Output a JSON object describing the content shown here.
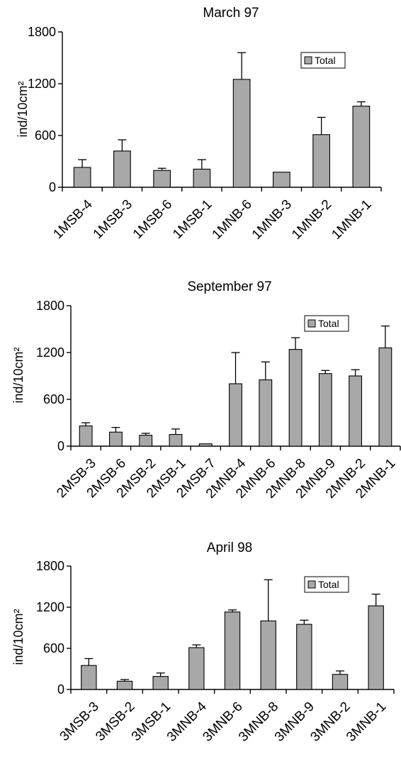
{
  "chart_data": [
    {
      "type": "bar",
      "title": "March 97",
      "ylabel": "ind/10cm²",
      "ylim": [
        0,
        1800
      ],
      "yticks": [
        0,
        600,
        1200,
        1800
      ],
      "legend": "top-right",
      "bar_color": "#a8a8a8",
      "series": [
        {
          "name": "Total",
          "categories": [
            "1MSB-4",
            "1MSB-3",
            "1MSB-6",
            "1MSB-1",
            "1MNB-6",
            "1MNB-3",
            "1MNB-2",
            "1MNB-1"
          ],
          "values": [
            230,
            420,
            195,
            210,
            1250,
            175,
            610,
            940
          ],
          "errors": [
            90,
            130,
            25,
            110,
            310,
            0,
            200,
            50
          ]
        }
      ]
    },
    {
      "type": "bar",
      "title": "September 97",
      "ylabel": "ind/10cm²",
      "ylim": [
        0,
        1800
      ],
      "yticks": [
        0,
        600,
        1200,
        1800
      ],
      "legend": "top-right",
      "bar_color": "#a8a8a8",
      "series": [
        {
          "name": "Total",
          "categories": [
            "2MSB-3",
            "2MSB-6",
            "2MSB-2",
            "2MSB-1",
            "2MSB-7",
            "2MNB-4",
            "2MNB-6",
            "2MNB-8",
            "2MNB-9",
            "2MNB-2",
            "2MNB-1"
          ],
          "values": [
            260,
            180,
            140,
            150,
            30,
            800,
            850,
            1240,
            930,
            900,
            1260
          ],
          "errors": [
            40,
            60,
            25,
            70,
            0,
            400,
            230,
            150,
            40,
            80,
            280
          ]
        }
      ]
    },
    {
      "type": "bar",
      "title": "April 98",
      "ylabel": "ind/10cm²",
      "ylim": [
        0,
        1800
      ],
      "yticks": [
        0,
        600,
        1200,
        1800
      ],
      "legend": "top-right",
      "bar_color": "#a8a8a8",
      "series": [
        {
          "name": "Total",
          "categories": [
            "3MSB-3",
            "3MSB-2",
            "3MSB-1",
            "3MNB-4",
            "3MNB-6",
            "3MNB-8",
            "3MNB-9",
            "3MNB-2",
            "3MNB-1"
          ],
          "values": [
            350,
            120,
            190,
            610,
            1130,
            1000,
            950,
            220,
            1220
          ],
          "errors": [
            100,
            25,
            50,
            40,
            30,
            600,
            60,
            50,
            170
          ]
        }
      ]
    }
  ]
}
